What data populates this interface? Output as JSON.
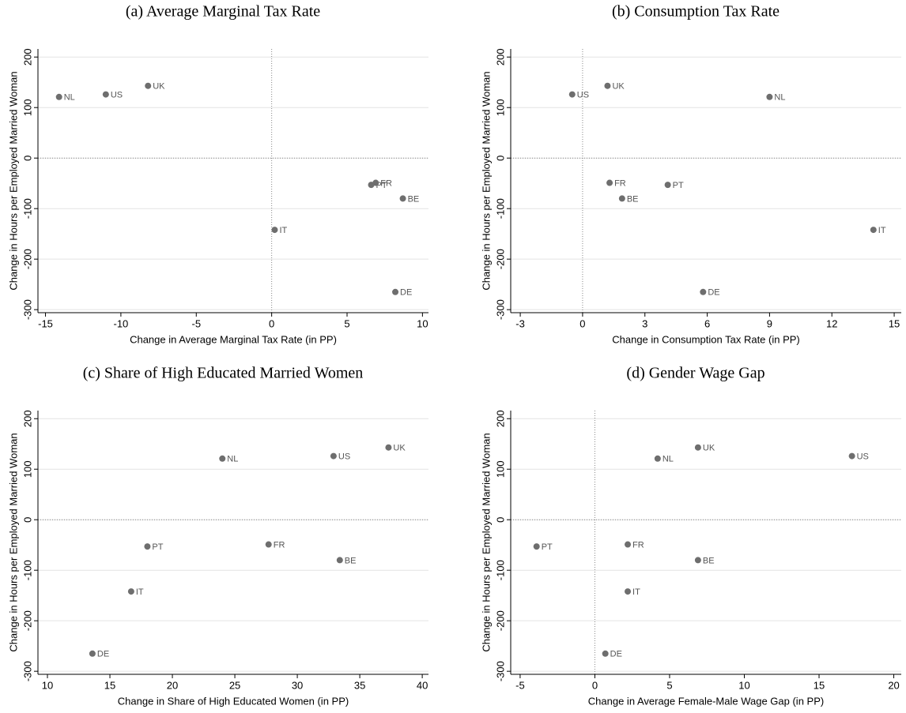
{
  "chart_data": [
    {
      "type": "scatter",
      "title": "(a) Average Marginal Tax Rate",
      "x_label": "Change in Average Marginal Tax Rate (in PP)",
      "y_label": "Change in Hours per Employed Married Woman",
      "labels": [
        "NL",
        "US",
        "UK",
        "PT",
        "FR",
        "BE",
        "IT",
        "DE"
      ],
      "x": [
        -14.1,
        -11.0,
        -8.2,
        6.6,
        6.9,
        8.7,
        0.2,
        8.2
      ],
      "y": [
        121,
        126,
        143,
        -53,
        -49,
        -80,
        -142,
        -265
      ],
      "color": "#6e6e6e",
      "xlim": [
        -15.5,
        10.4
      ],
      "ylim": [
        -306,
        216
      ],
      "xticks": [
        -15,
        -10,
        -5,
        0,
        5,
        10
      ],
      "yticks": [
        -300,
        -200,
        -100,
        0,
        100,
        200
      ],
      "grid": true,
      "xline": 0,
      "yline": 0
    },
    {
      "type": "scatter",
      "title": "(b) Consumption Tax Rate",
      "x_label": "Change in Consumption Tax Rate (in PP)",
      "y_label": "Change in Hours per Employed Married Woman",
      "labels": [
        "US",
        "UK",
        "NL",
        "FR",
        "BE",
        "PT",
        "IT",
        "DE"
      ],
      "x": [
        -0.5,
        1.2,
        9.0,
        1.3,
        1.9,
        4.1,
        14.0,
        5.8
      ],
      "y": [
        126,
        143,
        121,
        -49,
        -80,
        -53,
        -142,
        -265
      ],
      "color": "#6e6e6e",
      "xlim": [
        -3.46,
        15.34
      ],
      "ylim": [
        -306,
        216
      ],
      "xticks": [
        -3,
        0,
        3,
        6,
        9,
        12,
        15
      ],
      "yticks": [
        -300,
        -200,
        -100,
        0,
        100,
        200
      ],
      "grid": true,
      "xline": 0,
      "yline": 0
    },
    {
      "type": "scatter",
      "title": "(c) Share of High Educated Married Women",
      "x_label": "Change in Share of High Educated Women (in PP)",
      "y_label": "Change in Hours per Employed Married Woman",
      "labels": [
        "NL",
        "US",
        "UK",
        "FR",
        "PT",
        "BE",
        "IT",
        "DE"
      ],
      "x": [
        24.0,
        32.9,
        37.3,
        27.7,
        18.0,
        33.4,
        16.7,
        13.6
      ],
      "y": [
        121,
        126,
        143,
        -49,
        -53,
        -80,
        -142,
        -265
      ],
      "color": "#6e6e6e",
      "xlim": [
        9.24,
        40.5
      ],
      "ylim": [
        -306,
        216
      ],
      "xticks": [
        10,
        15,
        20,
        25,
        30,
        35,
        40
      ],
      "yticks": [
        -300,
        -200,
        -100,
        0,
        100,
        200
      ],
      "grid": true,
      "yline": 0
    },
    {
      "type": "scatter",
      "title": "(d) Gender Wage Gap",
      "x_label": "Change in Average Female-Male Wage Gap (in PP)",
      "y_label": "Change in Hours per Employed Married Woman",
      "labels": [
        "PT",
        "UK",
        "NL",
        "US",
        "FR",
        "BE",
        "IT",
        "DE"
      ],
      "x": [
        -3.9,
        6.9,
        4.2,
        17.2,
        2.2,
        6.9,
        2.2,
        0.7
      ],
      "y": [
        -53,
        143,
        121,
        126,
        -49,
        -80,
        -142,
        -265
      ],
      "color": "#6e6e6e",
      "xlim": [
        -5.63,
        20.5
      ],
      "ylim": [
        -306,
        216
      ],
      "xticks": [
        -5,
        0,
        5,
        10,
        15,
        20
      ],
      "yticks": [
        -300,
        -200,
        -100,
        0,
        100,
        200
      ],
      "grid": true,
      "xline": 0,
      "yline": 0
    }
  ]
}
